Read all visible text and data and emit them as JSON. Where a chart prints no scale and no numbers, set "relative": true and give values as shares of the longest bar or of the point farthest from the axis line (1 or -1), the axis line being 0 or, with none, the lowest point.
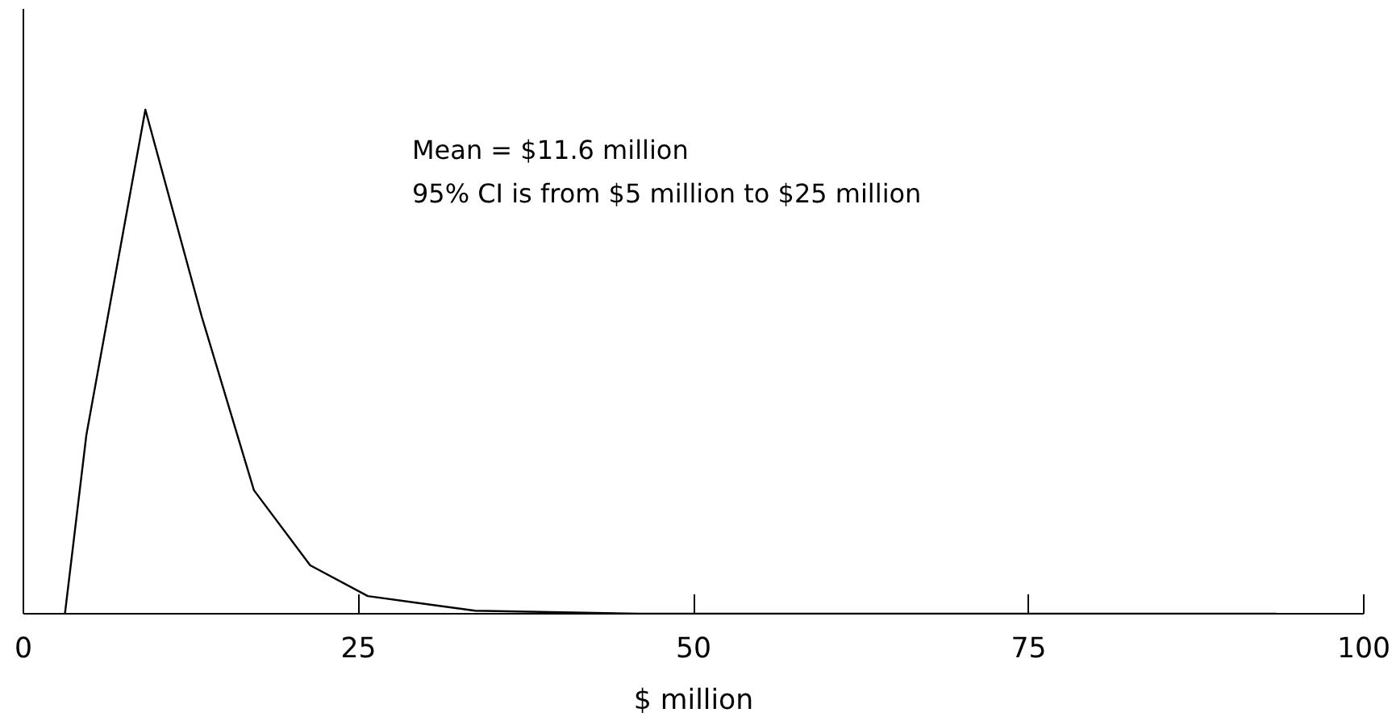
{
  "chart_data": {
    "type": "line",
    "relative": true,
    "xlabel": "$ million",
    "x": [
      3.1,
      4.7,
      9.1,
      13.3,
      17.2,
      21.4,
      25.7,
      33.7,
      46,
      93.5
    ],
    "series": [
      {
        "color": "#000000",
        "values": [
          0,
          0.355,
          1,
          0.59,
          0.245,
          0.096,
          0.035,
          0.006,
          0,
          0
        ]
      }
    ],
    "xlim": [
      0,
      100
    ],
    "xticks": [
      0,
      25,
      50,
      75,
      100
    ],
    "annotations": [
      "Mean = $11.6 million",
      "95% CI is from $5 million to $25 million"
    ],
    "grid": false,
    "marker": "none",
    "line_style": "solid"
  }
}
